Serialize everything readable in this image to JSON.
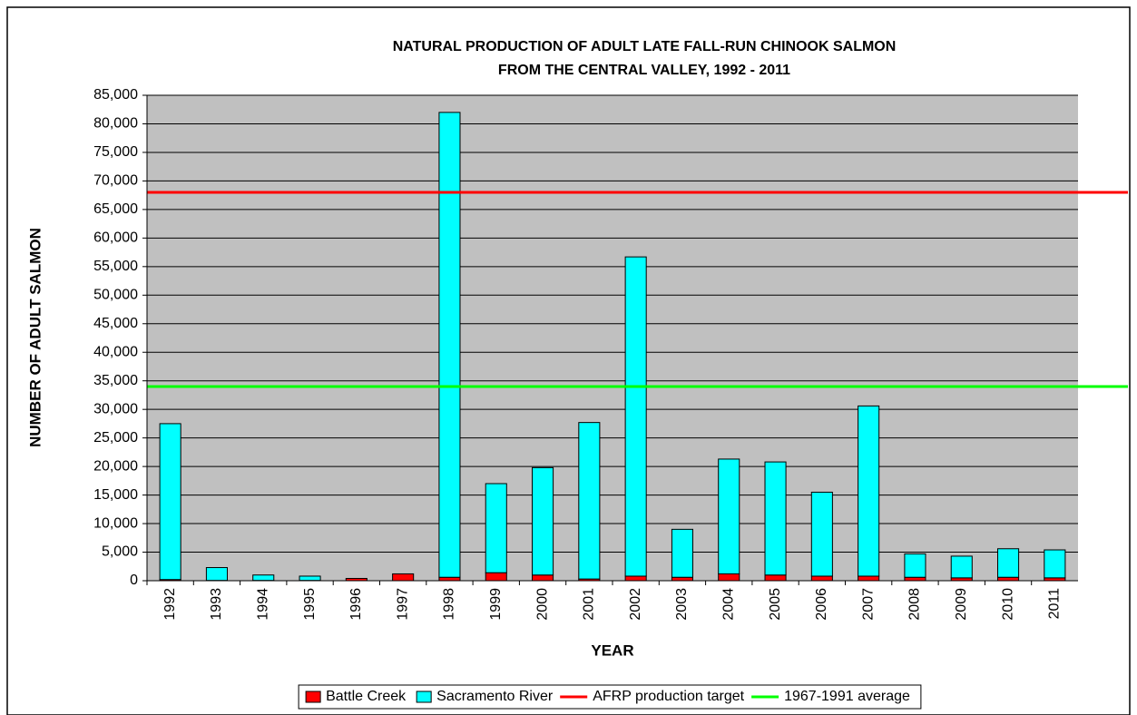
{
  "chart_data": {
    "type": "stacked_bar",
    "title": "NATURAL PRODUCTION OF ADULT LATE FALL-RUN CHINOOK SALMON",
    "subtitle": "FROM THE CENTRAL VALLEY, 1992 - 2011",
    "x_label": "YEAR",
    "y_label": "NUMBER OF ADULT SALMON",
    "categories": [
      "1992",
      "1993",
      "1994",
      "1995",
      "1996",
      "1997",
      "1998",
      "1999",
      "2000",
      "2001",
      "2002",
      "2003",
      "2004",
      "2005",
      "2006",
      "2007",
      "2008",
      "2009",
      "2010",
      "2011"
    ],
    "series": [
      {
        "name": "Battle Creek",
        "color": "#ff0000",
        "values": [
          200,
          50,
          50,
          50,
          400,
          1200,
          600,
          1400,
          1000,
          300,
          800,
          600,
          1200,
          1000,
          800,
          800,
          600,
          500,
          600,
          500
        ]
      },
      {
        "name": "Sacramento River",
        "color": "#00ffff",
        "values": [
          27300,
          2250,
          950,
          750,
          0,
          0,
          81400,
          15600,
          18800,
          27400,
          55900,
          8400,
          20100,
          19800,
          14700,
          29800,
          4100,
          3800,
          5000,
          4900
        ]
      }
    ],
    "reference_lines": [
      {
        "name": "AFRP production target",
        "color": "#ff0000",
        "value": 68000
      },
      {
        "name": "1967-1991 average",
        "color": "#00ff00",
        "value": 34000
      }
    ],
    "ylim": [
      0,
      85000
    ],
    "yticks": [
      0,
      {
        "value": 5000,
        "label": "5,000"
      },
      {
        "value": 10000,
        "label": "10,000"
      },
      {
        "value": 15000,
        "label": "15,000"
      },
      {
        "value": 20000,
        "label": "20,000"
      },
      {
        "value": 25000,
        "label": "25,000"
      },
      {
        "value": 30000,
        "label": "30,000"
      },
      {
        "value": 35000,
        "label": "35,000"
      },
      {
        "value": 40000,
        "label": "40,000"
      },
      {
        "value": 45000,
        "label": "45,000"
      },
      {
        "value": 50000,
        "label": "50,000"
      },
      {
        "value": 55000,
        "label": "55,000"
      },
      {
        "value": 60000,
        "label": "60,000"
      },
      {
        "value": 65000,
        "label": "65,000"
      },
      {
        "value": 70000,
        "label": "70,000"
      },
      {
        "value": 75000,
        "label": "75,000"
      },
      {
        "value": 80000,
        "label": "80,000"
      },
      {
        "value": 85000,
        "label": "85,000"
      }
    ],
    "grid": true,
    "legend": "bottom",
    "plot_background": "#c0c0c0"
  }
}
